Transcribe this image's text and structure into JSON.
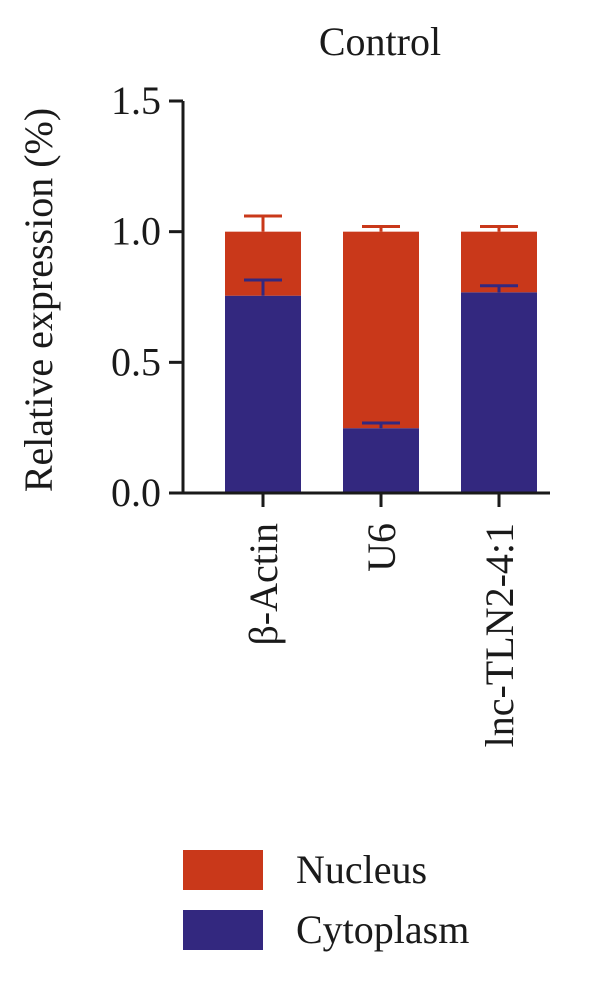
{
  "chart_data": {
    "type": "bar",
    "stacked": true,
    "title": "Control",
    "xlabel": "",
    "ylabel": "Relative expression (%)",
    "ylim": [
      0,
      1.5
    ],
    "yticks": [
      "0.0",
      "0.5",
      "1.0",
      "1.5"
    ],
    "categories": [
      "β-Actin",
      "U6",
      "lnc-TLN2-4:1"
    ],
    "series": [
      {
        "name": "Cytoplasm",
        "color": "#33287f",
        "values": [
          0.755,
          0.248,
          0.768
        ],
        "error": [
          0.06,
          0.02,
          0.025
        ]
      },
      {
        "name": "Nucleus",
        "color": "#c9381a",
        "values": [
          0.245,
          0.752,
          0.232
        ],
        "error": [
          0.06,
          0.02,
          0.02
        ]
      }
    ],
    "legend": {
      "position": "bottom",
      "entries": [
        {
          "label": "Nucleus",
          "color": "#c9381a"
        },
        {
          "label": "Cytoplasm",
          "color": "#33287f"
        }
      ]
    },
    "grid": false
  }
}
